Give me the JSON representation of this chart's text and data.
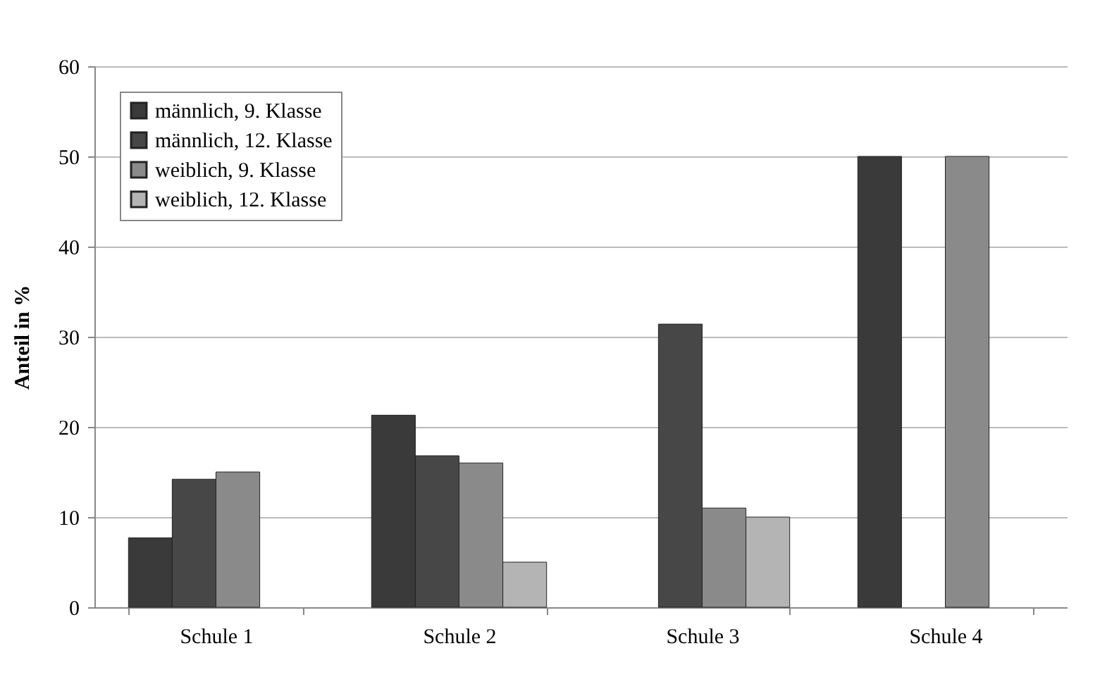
{
  "chart_data": {
    "type": "bar",
    "ylabel": "Anteil in %",
    "categories": [
      "Schule 1",
      "Schule 2",
      "Schule 3",
      "Schule 4"
    ],
    "series": [
      {
        "name": "männlich, 9. Klasse",
        "color": "#3a3a3a",
        "values": [
          7.7,
          21.3,
          null,
          50
        ]
      },
      {
        "name": "männlich, 12. Klasse",
        "color": "#474747",
        "values": [
          14.2,
          16.8,
          31.4,
          null
        ]
      },
      {
        "name": "weiblich, 9. Klasse",
        "color": "#8a8a8a",
        "values": [
          15.0,
          16.0,
          11.0,
          50
        ]
      },
      {
        "name": "weiblich, 12. Klasse",
        "color": "#b4b4b4",
        "values": [
          null,
          5.0,
          10.0,
          null
        ]
      }
    ],
    "ylim": [
      0,
      60
    ],
    "yticks": [
      0,
      10,
      20,
      30,
      40,
      50,
      60
    ],
    "grid": "y",
    "legend": "top left"
  }
}
